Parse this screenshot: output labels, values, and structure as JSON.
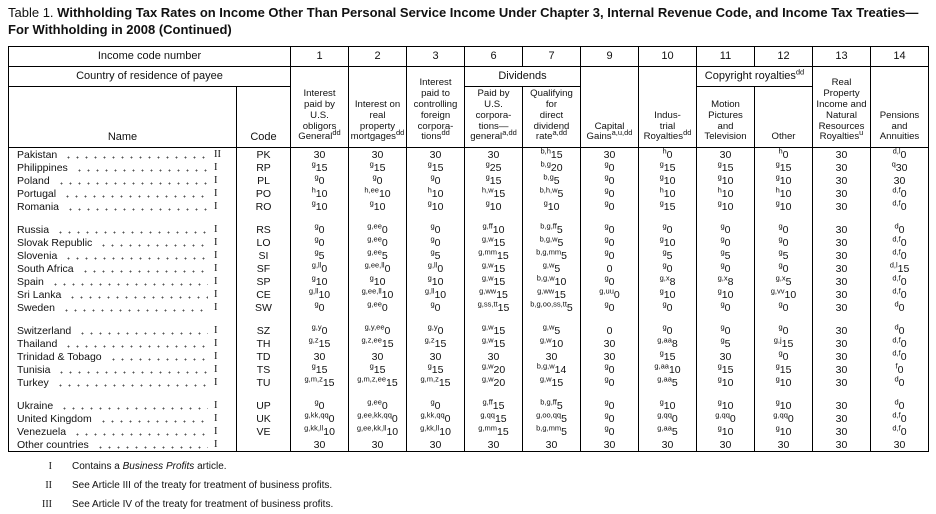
{
  "title": {
    "prefix": "Table 1.",
    "main": "Withholding Tax Rates on Income Other Than Personal Service Income Under Chapter 3, Internal Revenue Code, and Income Tax Treaties—For Withholding in 2008 (Continued)"
  },
  "table": {
    "header": {
      "income_code_label": "Income code number",
      "country_label": "Country of residence of payee",
      "name_label": "Name",
      "code_label": "Code",
      "dividends_label": "Dividends",
      "copyright_label": "Copyright royalties",
      "copyright_sup": "dd",
      "code_numbers": [
        "1",
        "2",
        "3",
        "6",
        "7",
        "9",
        "10",
        "11",
        "12",
        "13",
        "14"
      ],
      "col_descs": [
        {
          "text": "Interest\npaid by\nU.S.\nobligors\nGeneral",
          "sup": "dd"
        },
        {
          "text": "Interest on\nreal\nproperty\nmortgages",
          "sup": "dd"
        },
        {
          "text": "Interest\npaid to\ncontrolling\nforeign\ncorpora-\ntions",
          "sup": "dd"
        },
        {
          "text": "Paid by\nU.S.\ncorpora-\ntions—\ngeneral",
          "sup": "a,dd"
        },
        {
          "text": "Qualifying\nfor\ndirect\ndividend\nrate",
          "sup": "a,dd"
        },
        {
          "text": "Capital\nGains",
          "sup": "a,u,dd"
        },
        {
          "text": "Indus-\ntrial\nRoyalties",
          "sup": "dd"
        },
        {
          "text": "Motion\nPictures\nand\nTelevision",
          "sup": ""
        },
        {
          "text": "Other",
          "sup": ""
        },
        {
          "text": "Real\nProperty\nIncome and\nNatural\nResources\nRoyalties",
          "sup": "u"
        },
        {
          "text": "Pensions\nand\nAnnuities",
          "sup": ""
        }
      ]
    },
    "groups": [
      [
        {
          "name": "Pakistan",
          "numeral": "II",
          "code": "PK",
          "cells": [
            "30",
            "30",
            "30",
            "30",
            "b,h^15",
            "30",
            "h^0",
            "30",
            "h^0",
            "30",
            "d,l^0"
          ]
        },
        {
          "name": "Philippines",
          "numeral": "I",
          "code": "RP",
          "cells": [
            "g^15",
            "g^15",
            "g^15",
            "g^25",
            "b,g^20",
            "g^0",
            "g^15",
            "g^15",
            "g^15",
            "30",
            "q^30"
          ]
        },
        {
          "name": "Poland",
          "numeral": "I",
          "code": "PL",
          "cells": [
            "g^0",
            "g^0",
            "g^0",
            "g^15",
            "b,g^5",
            "g^0",
            "g^10",
            "g^10",
            "g^10",
            "30",
            "30"
          ]
        },
        {
          "name": "Portugal",
          "numeral": "I",
          "code": "PO",
          "cells": [
            "h^10",
            "h,ee^10",
            "h^10",
            "h,w^15",
            "b,h,w^5",
            "g^0",
            "h^10",
            "h^10",
            "h^10",
            "30",
            "d,f^0"
          ]
        },
        {
          "name": "Romania",
          "numeral": "I",
          "code": "RO",
          "cells": [
            "g^10",
            "g^10",
            "g^10",
            "g^10",
            "g^10",
            "g^0",
            "g^15",
            "g^10",
            "g^10",
            "30",
            "d,f^0"
          ]
        }
      ],
      [
        {
          "name": "Russia",
          "numeral": "I",
          "code": "RS",
          "cells": [
            "g^0",
            "g,ee^0",
            "g^0",
            "g,ff^10",
            "b,g,ff^5",
            "g^0",
            "g^0",
            "g^0",
            "g^0",
            "30",
            "d^0"
          ]
        },
        {
          "name": "Slovak Republic",
          "numeral": "I",
          "code": "LO",
          "cells": [
            "g^0",
            "g,ee^0",
            "g^0",
            "g,w^15",
            "b,g,w^5",
            "g^0",
            "g^10",
            "g^0",
            "g^0",
            "30",
            "d,f^0"
          ]
        },
        {
          "name": "Slovenia",
          "numeral": "I",
          "code": "SI",
          "cells": [
            "g^5",
            "g,ee^5",
            "g^5",
            "g,mm^15",
            "b,g,mm^5",
            "g^0",
            "g^5",
            "g^5",
            "g^5",
            "30",
            "d,f^0"
          ]
        },
        {
          "name": "South Africa",
          "numeral": "I",
          "code": "SF",
          "cells": [
            "g,ll^0",
            "g,ee,ll^0",
            "g,ll^0",
            "g,w^15",
            "g,w^5",
            "0",
            "g^0",
            "g^0",
            "g^0",
            "30",
            "d,l^15"
          ]
        },
        {
          "name": "Spain",
          "numeral": "I",
          "code": "SP",
          "cells": [
            "g^10",
            "g^10",
            "g^10",
            "g,w^15",
            "b,g,w^10",
            "g^0",
            "g,x^8",
            "g,x^8",
            "g,x^5",
            "30",
            "d,f^0"
          ]
        },
        {
          "name": "Sri Lanka",
          "numeral": "I",
          "code": "CE",
          "cells": [
            "g,ll^10",
            "g,ee,ll^10",
            "g,ll^10",
            "g,ww^15",
            "g,ww^15",
            "g,uu^0",
            "g^10",
            "g^10",
            "g,vv^10",
            "30",
            "d,f^0"
          ]
        },
        {
          "name": "Sweden",
          "numeral": "I",
          "code": "SW",
          "cells": [
            "g^0",
            "g,ee^0",
            "g^0",
            "g,ss,tt^15",
            "b,g,oo,ss,tt^5",
            "g^0",
            "g^0",
            "g^0",
            "g^0",
            "30",
            "d^0"
          ]
        }
      ],
      [
        {
          "name": "Switzerland",
          "numeral": "I",
          "code": "SZ",
          "cells": [
            "g,y^0",
            "g,y,ee^0",
            "g,y^0",
            "g,w^15",
            "g,w^5",
            "0",
            "g^0",
            "g^0",
            "g^0",
            "30",
            "d^0"
          ]
        },
        {
          "name": "Thailand",
          "numeral": "I",
          "code": "TH",
          "cells": [
            "g,z^15",
            "g,z,ee^15",
            "g,z^15",
            "g,w^15",
            "g,w^10",
            "30",
            "g,aa^8",
            "g^5",
            "g,j^15",
            "30",
            "d,f^0"
          ]
        },
        {
          "name": "Trinidad & Tobago",
          "numeral": "I",
          "code": "TD",
          "cells": [
            "30",
            "30",
            "30",
            "30",
            "30",
            "30",
            "g^15",
            "30",
            "g^0",
            "30",
            "d,f^0"
          ]
        },
        {
          "name": "Tunisia",
          "numeral": "I",
          "code": "TS",
          "cells": [
            "g^15",
            "g^15",
            "g^15",
            "g,w^20",
            "b,g,w^14",
            "g^0",
            "g,aa^10",
            "g^15",
            "g^15",
            "30",
            "f^0"
          ]
        },
        {
          "name": "Turkey",
          "numeral": "I",
          "code": "TU",
          "cells": [
            "g,m,z^15",
            "g,m,z,ee^15",
            "g,m,z^15",
            "g,w^20",
            "g,w^15",
            "g^0",
            "g,aa^5",
            "g^10",
            "g^10",
            "30",
            "d^0"
          ]
        }
      ],
      [
        {
          "name": "Ukraine",
          "numeral": "I",
          "code": "UP",
          "cells": [
            "g^0",
            "g,ee^0",
            "g^0",
            "g,ff^15",
            "b,g,ff^5",
            "g^0",
            "g^10",
            "g^10",
            "g^10",
            "30",
            "d^0"
          ]
        },
        {
          "name": "United Kingdom",
          "numeral": "I",
          "code": "UK",
          "cells": [
            "g,kk,qq^0",
            "g,ee,kk,qq^0",
            "g,kk,qq^0",
            "g,qq^15",
            "g,oo,qq^5",
            "g^0",
            "g,qq^0",
            "g,qq^0",
            "g,qq^0",
            "30",
            "d,f^0"
          ]
        },
        {
          "name": "Venezuela",
          "numeral": "I",
          "code": "VE",
          "cells": [
            "g,kk,ll^10",
            "g,ee,kk,ll^10",
            "g,kk,ll^10",
            "g,mm^15",
            "b,g,mm^5",
            "g^0",
            "g,aa^5",
            "g^10",
            "g^10",
            "30",
            "d,f^0"
          ]
        },
        {
          "name": "Other countries",
          "numeral": "I",
          "code": "",
          "cells": [
            "30",
            "30",
            "30",
            "30",
            "30",
            "30",
            "30",
            "30",
            "30",
            "30",
            "30"
          ]
        }
      ]
    ]
  },
  "footnotes": [
    {
      "marker": "I",
      "pre": "Contains a ",
      "italic": "Business Profits",
      "post": " article."
    },
    {
      "marker": "II",
      "pre": "See Article III of the treaty for treatment of business profits.",
      "italic": "",
      "post": ""
    },
    {
      "marker": "III",
      "pre": "See Article IV of the treaty for treatment of business profits.",
      "italic": "",
      "post": ""
    }
  ]
}
